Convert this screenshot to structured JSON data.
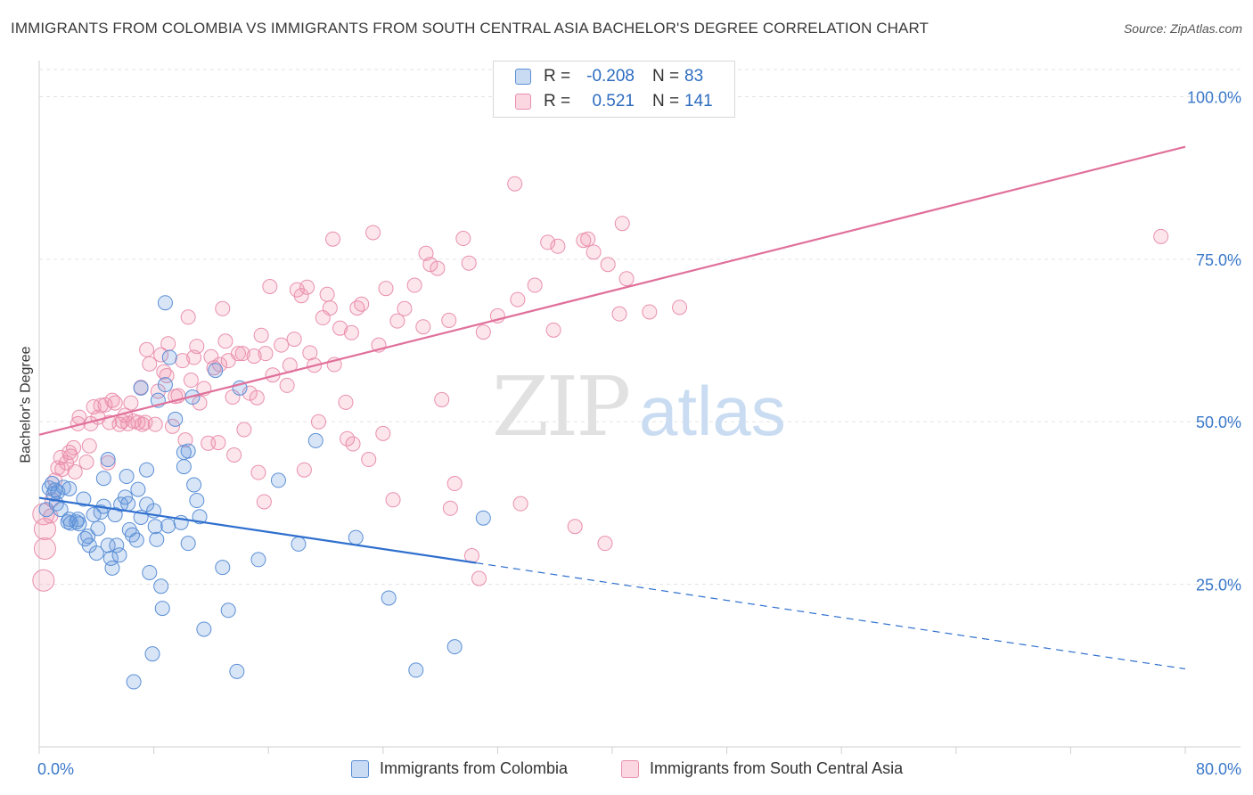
{
  "title": "IMMIGRANTS FROM COLOMBIA VS IMMIGRANTS FROM SOUTH CENTRAL ASIA BACHELOR'S DEGREE CORRELATION CHART",
  "source": "Source: ZipAtlas.com",
  "watermark": {
    "zip": "ZIP",
    "atlas": "atlas"
  },
  "legend_top": {
    "rows": [
      {
        "r_label": "R =",
        "r_value": "-0.208",
        "n_label": "N =",
        "n_value": "83"
      },
      {
        "r_label": "R =",
        "r_value": "0.521",
        "n_label": "N =",
        "n_value": "141"
      }
    ]
  },
  "colors": {
    "blue_fill": "rgba(100,150,220,0.25)",
    "blue_stroke": "#5b8fd6",
    "blue_line": "#2f6fcf",
    "pink_fill": "rgba(240,140,170,0.22)",
    "pink_stroke": "#e98fae",
    "pink_line": "#e0709a",
    "tick_text": "#3a78c9",
    "grid": "#e3e3e3"
  },
  "chart_data": {
    "type": "scatter",
    "title": "IMMIGRANTS FROM COLOMBIA VS IMMIGRANTS FROM SOUTH CENTRAL ASIA BACHELOR'S DEGREE CORRELATION CHART",
    "xlabel": "",
    "ylabel": "Bachelor's Degree",
    "xlim": [
      0,
      80
    ],
    "ylim": [
      0,
      105
    ],
    "x_ticks": [
      {
        "value": 0,
        "label": "0.0%"
      },
      {
        "value": 80,
        "label": "80.0%"
      }
    ],
    "y_ticks": [
      {
        "value": 25,
        "label": "25.0%"
      },
      {
        "value": 50,
        "label": "50.0%"
      },
      {
        "value": 75,
        "label": "75.0%"
      },
      {
        "value": 100,
        "label": "100.0%"
      }
    ],
    "series": [
      {
        "name": "Immigrants from Colombia",
        "color": "blue",
        "R": -0.208,
        "N": 83,
        "trend": {
          "x0": 0,
          "y0": 38.3,
          "x1": 30.5,
          "y1": 28.3,
          "dash_to_x": 80,
          "dash_to_y": 12.0
        },
        "points": [
          [
            0.5,
            36.5
          ],
          [
            0.7,
            39.8
          ],
          [
            0.9,
            40.5
          ],
          [
            1.0,
            38.9
          ],
          [
            1.1,
            39.5
          ],
          [
            1.2,
            37.4
          ],
          [
            1.3,
            39.2
          ],
          [
            1.5,
            36.5
          ],
          [
            1.7,
            39.9
          ],
          [
            2.0,
            34.6
          ],
          [
            2.1,
            35.0
          ],
          [
            2.2,
            34.4
          ],
          [
            2.6,
            34.6
          ],
          [
            2.7,
            35.0
          ],
          [
            2.8,
            34.3
          ],
          [
            3.1,
            38.1
          ],
          [
            3.2,
            32.0
          ],
          [
            3.4,
            32.4
          ],
          [
            3.5,
            31.0
          ],
          [
            3.8,
            35.7
          ],
          [
            4.0,
            29.8
          ],
          [
            4.1,
            33.6
          ],
          [
            4.3,
            36.1
          ],
          [
            4.5,
            37.0
          ],
          [
            4.5,
            41.3
          ],
          [
            4.8,
            44.2
          ],
          [
            4.8,
            31.0
          ],
          [
            5.0,
            29.0
          ],
          [
            5.1,
            27.5
          ],
          [
            5.3,
            35.7
          ],
          [
            5.4,
            31.0
          ],
          [
            5.6,
            29.5
          ],
          [
            5.7,
            37.3
          ],
          [
            6.0,
            38.4
          ],
          [
            6.1,
            41.6
          ],
          [
            6.2,
            37.4
          ],
          [
            6.3,
            33.4
          ],
          [
            6.5,
            32.6
          ],
          [
            6.6,
            10.0
          ],
          [
            6.8,
            31.8
          ],
          [
            6.9,
            39.6
          ],
          [
            7.1,
            35.3
          ],
          [
            7.5,
            37.3
          ],
          [
            7.5,
            42.6
          ],
          [
            7.7,
            26.8
          ],
          [
            7.9,
            14.3
          ],
          [
            8.0,
            36.3
          ],
          [
            8.1,
            33.9
          ],
          [
            8.2,
            31.9
          ],
          [
            8.3,
            53.3
          ],
          [
            8.5,
            24.7
          ],
          [
            8.6,
            21.3
          ],
          [
            8.8,
            68.3
          ],
          [
            8.8,
            55.7
          ],
          [
            9.0,
            34.0
          ],
          [
            9.5,
            50.4
          ],
          [
            9.9,
            34.5
          ],
          [
            10.1,
            43.1
          ],
          [
            10.1,
            45.3
          ],
          [
            10.4,
            45.5
          ],
          [
            10.4,
            31.3
          ],
          [
            10.7,
            53.8
          ],
          [
            10.8,
            40.3
          ],
          [
            11.0,
            37.9
          ],
          [
            11.2,
            35.4
          ],
          [
            11.5,
            18.1
          ],
          [
            12.3,
            57.9
          ],
          [
            12.8,
            27.6
          ],
          [
            13.2,
            21.0
          ],
          [
            13.8,
            11.6
          ],
          [
            14.0,
            55.2
          ],
          [
            15.3,
            28.8
          ],
          [
            16.7,
            41.0
          ],
          [
            18.1,
            31.2
          ],
          [
            19.3,
            47.1
          ],
          [
            22.1,
            32.2
          ],
          [
            24.4,
            22.9
          ],
          [
            26.3,
            11.8
          ],
          [
            29.0,
            15.4
          ],
          [
            31.0,
            35.2
          ],
          [
            9.1,
            59.9
          ],
          [
            7.1,
            55.2
          ],
          [
            2.1,
            39.7
          ]
        ]
      },
      {
        "name": "Immigrants from South Central Asia",
        "color": "pink",
        "R": 0.521,
        "N": 141,
        "trend": {
          "x0": 0,
          "y0": 48.0,
          "x1": 80,
          "y1": 92.3
        },
        "points": [
          [
            0.3,
            35.8
          ],
          [
            0.4,
            33.5
          ],
          [
            0.4,
            30.5
          ],
          [
            0.3,
            25.6
          ],
          [
            0.8,
            35.5
          ],
          [
            0.9,
            38.0
          ],
          [
            1.1,
            41.0
          ],
          [
            1.3,
            42.9
          ],
          [
            1.5,
            44.5
          ],
          [
            1.6,
            42.7
          ],
          [
            1.9,
            43.7
          ],
          [
            2.1,
            45.3
          ],
          [
            2.2,
            44.7
          ],
          [
            2.4,
            46.0
          ],
          [
            2.5,
            42.3
          ],
          [
            2.7,
            49.7
          ],
          [
            2.8,
            50.7
          ],
          [
            3.3,
            43.8
          ],
          [
            3.5,
            46.3
          ],
          [
            3.6,
            49.7
          ],
          [
            3.8,
            52.3
          ],
          [
            4.1,
            50.7
          ],
          [
            4.3,
            52.5
          ],
          [
            4.6,
            52.6
          ],
          [
            4.8,
            43.7
          ],
          [
            4.9,
            49.9
          ],
          [
            5.1,
            53.3
          ],
          [
            5.3,
            52.9
          ],
          [
            5.6,
            49.6
          ],
          [
            5.8,
            50.1
          ],
          [
            6.0,
            51.0
          ],
          [
            6.2,
            49.7
          ],
          [
            6.4,
            52.9
          ],
          [
            6.6,
            50.1
          ],
          [
            6.9,
            49.9
          ],
          [
            7.1,
            55.3
          ],
          [
            7.2,
            49.6
          ],
          [
            7.4,
            49.9
          ],
          [
            7.5,
            61.1
          ],
          [
            7.7,
            58.9
          ],
          [
            8.1,
            49.6
          ],
          [
            8.3,
            54.7
          ],
          [
            8.5,
            60.3
          ],
          [
            8.7,
            57.7
          ],
          [
            8.9,
            57.1
          ],
          [
            9.0,
            62.0
          ],
          [
            9.3,
            49.3
          ],
          [
            9.5,
            53.9
          ],
          [
            9.7,
            54.0
          ],
          [
            10.0,
            59.4
          ],
          [
            10.2,
            47.2
          ],
          [
            10.4,
            66.1
          ],
          [
            10.8,
            59.9
          ],
          [
            11.0,
            61.6
          ],
          [
            11.2,
            52.9
          ],
          [
            11.5,
            55.1
          ],
          [
            11.8,
            46.7
          ],
          [
            12.0,
            60.0
          ],
          [
            12.2,
            58.3
          ],
          [
            12.5,
            46.8
          ],
          [
            12.6,
            58.8
          ],
          [
            12.8,
            67.4
          ],
          [
            13.0,
            62.4
          ],
          [
            13.2,
            59.4
          ],
          [
            13.5,
            53.8
          ],
          [
            13.9,
            60.5
          ],
          [
            14.2,
            60.5
          ],
          [
            14.3,
            48.8
          ],
          [
            14.7,
            54.4
          ],
          [
            15.0,
            60.1
          ],
          [
            15.2,
            53.7
          ],
          [
            15.3,
            42.2
          ],
          [
            15.5,
            63.3
          ],
          [
            15.7,
            37.7
          ],
          [
            15.8,
            60.5
          ],
          [
            16.1,
            70.8
          ],
          [
            16.3,
            57.2
          ],
          [
            16.9,
            61.8
          ],
          [
            17.3,
            55.6
          ],
          [
            17.5,
            58.7
          ],
          [
            17.8,
            62.7
          ],
          [
            18.0,
            70.3
          ],
          [
            18.3,
            69.4
          ],
          [
            18.5,
            42.6
          ],
          [
            18.7,
            70.7
          ],
          [
            18.9,
            60.6
          ],
          [
            19.2,
            58.7
          ],
          [
            19.5,
            50.0
          ],
          [
            19.8,
            66.0
          ],
          [
            20.1,
            69.6
          ],
          [
            20.3,
            67.5
          ],
          [
            20.6,
            58.8
          ],
          [
            21.0,
            64.4
          ],
          [
            21.4,
            53.0
          ],
          [
            21.5,
            47.4
          ],
          [
            21.8,
            63.7
          ],
          [
            21.9,
            46.6
          ],
          [
            22.2,
            67.5
          ],
          [
            22.5,
            68.1
          ],
          [
            23.0,
            44.2
          ],
          [
            23.3,
            79.1
          ],
          [
            23.7,
            61.8
          ],
          [
            24.0,
            48.2
          ],
          [
            24.2,
            70.5
          ],
          [
            25.0,
            65.5
          ],
          [
            25.5,
            67.4
          ],
          [
            26.2,
            71.0
          ],
          [
            26.8,
            64.6
          ],
          [
            27.0,
            75.9
          ],
          [
            27.3,
            74.2
          ],
          [
            27.8,
            73.6
          ],
          [
            28.1,
            53.4
          ],
          [
            28.6,
            65.6
          ],
          [
            28.7,
            36.7
          ],
          [
            29.0,
            40.5
          ],
          [
            29.6,
            78.2
          ],
          [
            30.0,
            74.4
          ],
          [
            30.2,
            29.4
          ],
          [
            31.0,
            63.8
          ],
          [
            32.0,
            66.3
          ],
          [
            33.2,
            86.6
          ],
          [
            33.4,
            68.8
          ],
          [
            34.6,
            71.0
          ],
          [
            35.5,
            77.6
          ],
          [
            35.9,
            64.1
          ],
          [
            36.2,
            77.0
          ],
          [
            37.4,
            33.9
          ],
          [
            38.0,
            77.9
          ],
          [
            38.3,
            78.1
          ],
          [
            38.7,
            76.1
          ],
          [
            39.5,
            31.3
          ],
          [
            39.7,
            74.2
          ],
          [
            40.5,
            66.6
          ],
          [
            40.7,
            80.5
          ],
          [
            41.0,
            72.0
          ],
          [
            42.6,
            66.9
          ],
          [
            44.7,
            67.6
          ],
          [
            78.3,
            78.5
          ],
          [
            33.6,
            37.4
          ],
          [
            10.6,
            56.4
          ],
          [
            24.7,
            38.0
          ],
          [
            13.6,
            44.9
          ],
          [
            30.7,
            25.9
          ],
          [
            20.5,
            78.1
          ]
        ]
      }
    ]
  },
  "legend_bottom": [
    {
      "label": "Immigrants from Colombia"
    },
    {
      "label": "Immigrants from South Central Asia"
    }
  ]
}
